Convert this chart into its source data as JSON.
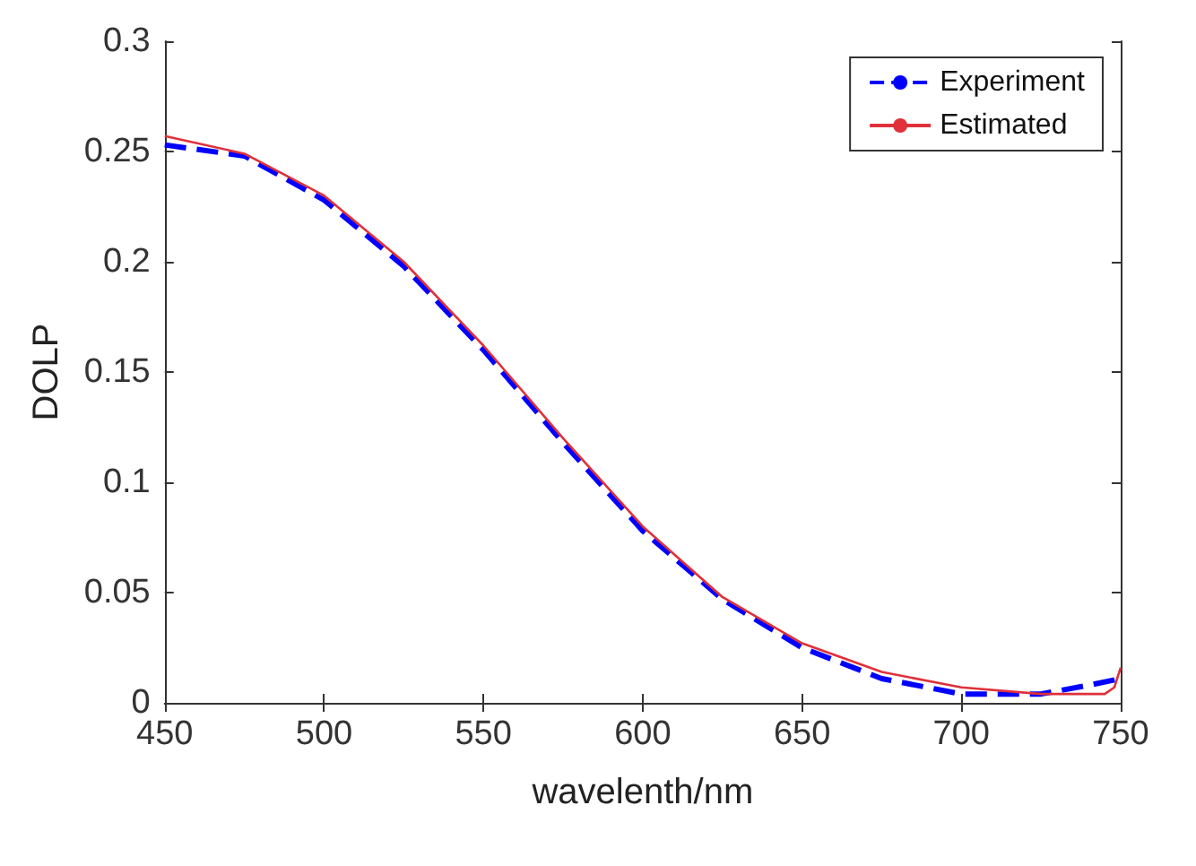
{
  "chart_data": {
    "type": "line",
    "xlabel": "wavelenth/nm",
    "ylabel": "DOLP",
    "x": [
      450,
      475,
      500,
      525,
      550,
      575,
      600,
      625,
      650,
      675,
      700,
      725,
      740,
      750
    ],
    "series": [
      {
        "name": "Experiment",
        "color": "#0000ff",
        "line_style": "dashed",
        "values": [
          0.253,
          0.248,
          0.228,
          0.198,
          0.16,
          0.118,
          0.078,
          0.047,
          0.025,
          0.011,
          0.004,
          0.004,
          0.008,
          0.011
        ]
      },
      {
        "name": "Estimated",
        "color": "#e0303a",
        "line_style": "solid",
        "x": [
          450,
          475,
          500,
          525,
          550,
          575,
          600,
          625,
          650,
          675,
          700,
          725,
          745,
          748,
          750
        ],
        "values": [
          0.257,
          0.249,
          0.23,
          0.2,
          0.162,
          0.12,
          0.08,
          0.048,
          0.027,
          0.014,
          0.007,
          0.004,
          0.004,
          0.007,
          0.016
        ]
      }
    ],
    "xlim": [
      450,
      750
    ],
    "xticks": [
      450,
      500,
      550,
      600,
      650,
      700,
      750
    ],
    "ylim": [
      0,
      0.3
    ],
    "yticks": [
      0,
      0.05,
      0.1,
      0.15,
      0.2,
      0.25,
      0.3
    ],
    "grid": false,
    "legend": "top right",
    "marker": "none"
  }
}
